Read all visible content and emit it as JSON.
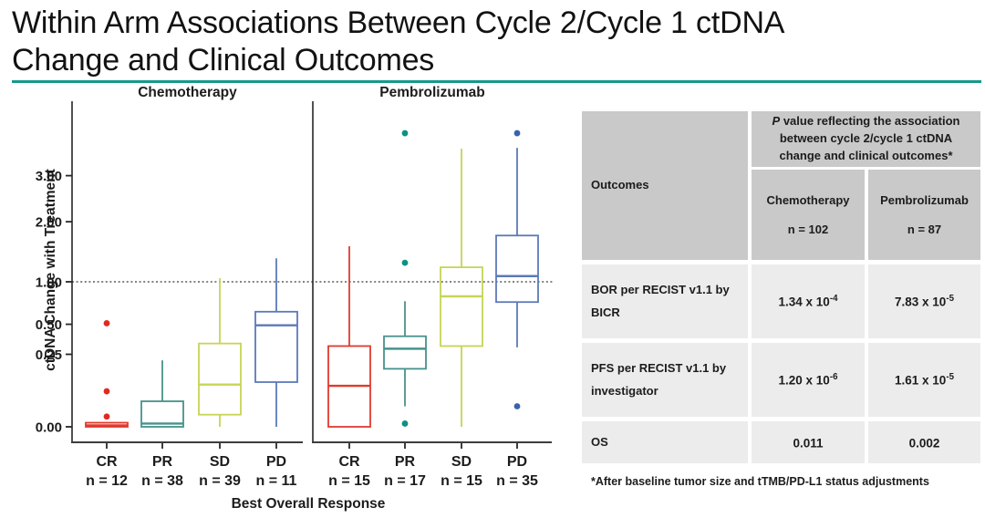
{
  "title": {
    "line1": "Within Arm Associations Between Cycle 2/Cycle 1 ctDNA",
    "line2": "Change and Clinical Outcomes"
  },
  "accent_color": "#16998a",
  "chart_data": {
    "type": "boxplot",
    "y_scale": "sqrt",
    "ylabel": "ctDNA Change with Treatment",
    "xlabel": "Best Overall Response",
    "y_ticks": [
      0,
      0.25,
      0.5,
      1,
      2,
      3
    ],
    "y_tick_labels": [
      "0.00",
      "0.25",
      "0.50",
      "1.00",
      "2.00",
      "3.00"
    ],
    "reference_line": 1.0,
    "panels": [
      {
        "title": "Chemotherapy",
        "categories": [
          "CR",
          "PR",
          "SD",
          "PD"
        ],
        "n_labels": [
          "n = 12",
          "n = 38",
          "n = 39",
          "n = 11"
        ],
        "boxes": [
          {
            "color": "#e03a2f",
            "dot_color": "#e02a20",
            "lo": null,
            "q1": 0,
            "med": 0.0001,
            "q3": 0.0008,
            "hi": null,
            "outliers": [
              0.51,
              0.06,
              0.005
            ]
          },
          {
            "color": "#47928b",
            "dot_color": "#0c9184",
            "lo": null,
            "q1": 0,
            "med": 0.0005,
            "q3": 0.031,
            "hi": 0.21,
            "outliers": []
          },
          {
            "color": "#c7d455",
            "dot_color": "#c7d455",
            "lo": 0,
            "q1": 0.007,
            "med": 0.085,
            "q3": 0.33,
            "hi": 1.05,
            "outliers": []
          },
          {
            "color": "#5c79b8",
            "dot_color": "#3a61ae",
            "lo": 0,
            "q1": 0.095,
            "med": 0.49,
            "q3": 0.63,
            "hi": 1.35,
            "outliers": []
          }
        ]
      },
      {
        "title": "Pembrolizumab",
        "categories": [
          "CR",
          "PR",
          "SD",
          "PD"
        ],
        "n_labels": [
          "n = 15",
          "n = 17",
          "n = 15",
          "n = 35"
        ],
        "boxes": [
          {
            "color": "#e03a2f",
            "dot_color": "#e02a20",
            "lo": null,
            "q1": 0,
            "med": 0.08,
            "q3": 0.31,
            "hi": 1.55,
            "outliers": []
          },
          {
            "color": "#47928b",
            "dot_color": "#0c9184",
            "lo": 0.02,
            "q1": 0.16,
            "med": 0.29,
            "q3": 0.39,
            "hi": 0.75,
            "outliers": [
              4.1,
              1.28,
              0.0005
            ]
          },
          {
            "color": "#c7d455",
            "dot_color": "#c7d455",
            "lo": 0,
            "q1": 0.31,
            "med": 0.81,
            "q3": 1.21,
            "hi": 3.68,
            "outliers": []
          },
          {
            "color": "#5c79b8",
            "dot_color": "#3a61ae",
            "lo": 0.3,
            "q1": 0.74,
            "med": 1.08,
            "q3": 1.74,
            "hi": 3.7,
            "outliers": [
              4.1,
              0.02
            ]
          }
        ]
      }
    ]
  },
  "table": {
    "outcomes_header": "Outcomes",
    "p_italic": "P",
    "p_rest": " value reflecting the association between cycle 2/cycle 1 ctDNA change and clinical outcomes*",
    "columns": [
      {
        "name": "Chemotherapy",
        "n": "n = 102"
      },
      {
        "name": "Pembrolizumab",
        "n": "n = 87"
      }
    ],
    "rows": [
      {
        "outcome": "BOR per RECIST v1.1 by BICR",
        "chemo": "1.34 x 10",
        "chemo_exp": "-4",
        "pembro": "7.83 x 10",
        "pembro_exp": "-5"
      },
      {
        "outcome": "PFS per RECIST v1.1 by investigator",
        "chemo": "1.20 x 10",
        "chemo_exp": "-6",
        "pembro": "1.61 x 10",
        "pembro_exp": "-5"
      },
      {
        "outcome": "OS",
        "chemo": "0.011",
        "chemo_exp": "",
        "pembro": "0.002",
        "pembro_exp": ""
      }
    ],
    "footnote": "*After baseline tumor size and tTMB/PD-L1 status adjustments"
  }
}
